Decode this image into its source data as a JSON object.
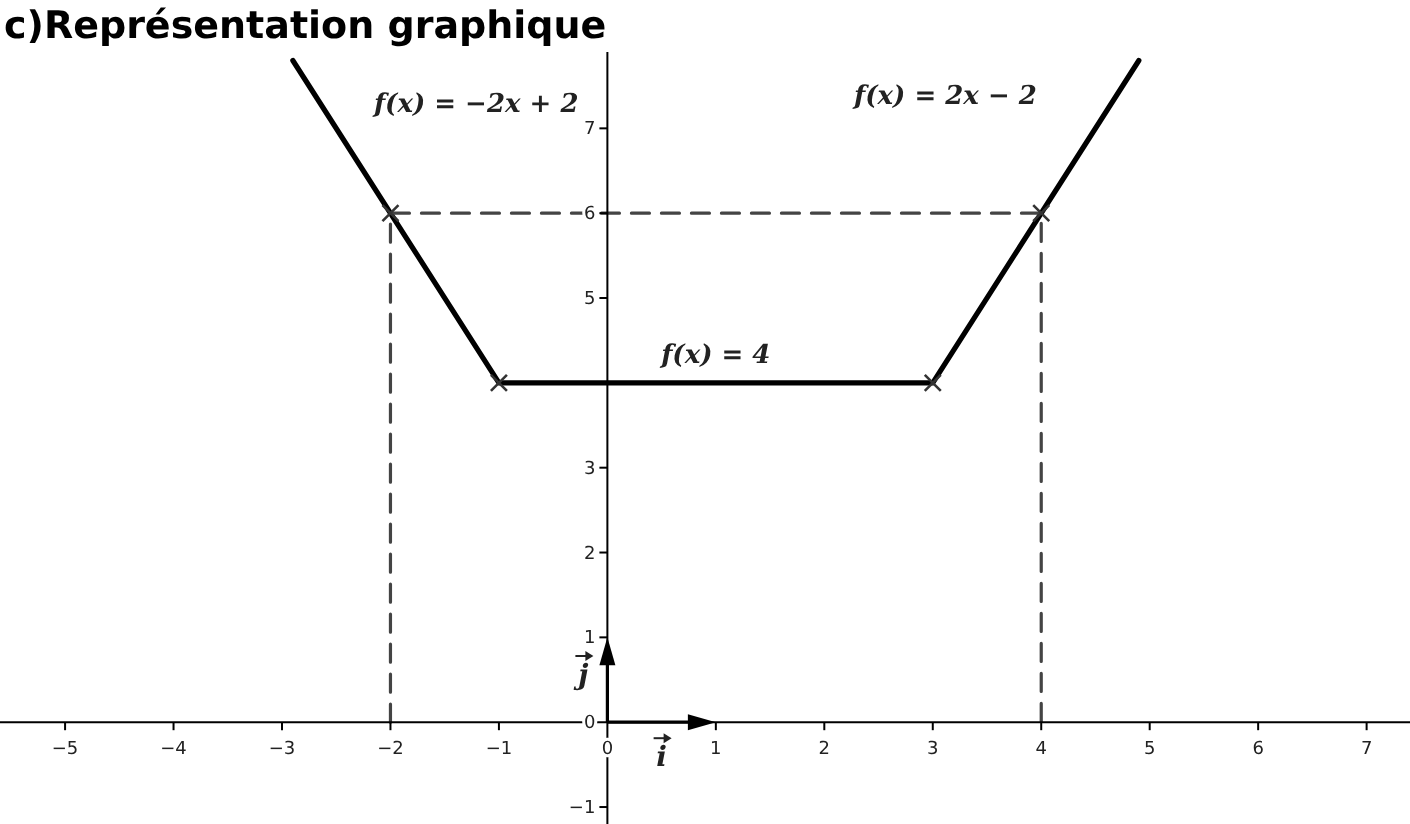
{
  "chart_data": {
    "type": "line",
    "title": "c)Représentation graphique",
    "xlim": [
      -5.6,
      7.4
    ],
    "ylim": [
      -1.2,
      7.9
    ],
    "xticks": [
      -5,
      -4,
      -3,
      -2,
      -1,
      0,
      1,
      2,
      3,
      4,
      5,
      6,
      7
    ],
    "yticks": [
      -1,
      0,
      1,
      2,
      3,
      {
        "value": 4,
        "label": null
      },
      5,
      6,
      7
    ],
    "grid": false,
    "marker": "none",
    "series": [
      {
        "color": "#000000",
        "line_style": "solid",
        "x": [
          -2.9,
          -1,
          3,
          4.9
        ],
        "values": [
          7.8,
          4,
          4,
          7.8
        ]
      },
      {
        "color": "#444444",
        "line_style": "dashed",
        "x": [
          -2,
          -2,
          4,
          4
        ],
        "values": [
          0,
          6,
          6,
          0
        ]
      },
      {
        "type": "scatter",
        "color": "#333333",
        "marker": "cross",
        "x": [
          -2,
          -1,
          3,
          4
        ],
        "values": [
          6,
          4,
          4,
          6
        ]
      }
    ],
    "annotations": [
      {
        "text": "f(x) = −2x + 2",
        "x": -2.5,
        "y": 7
      },
      {
        "text": "f(x) = 2x − 2",
        "x": 4.5,
        "y": 7
      },
      {
        "text": "f(x) = 4",
        "x": 1,
        "y": 4
      },
      "i",
      "j"
    ]
  }
}
